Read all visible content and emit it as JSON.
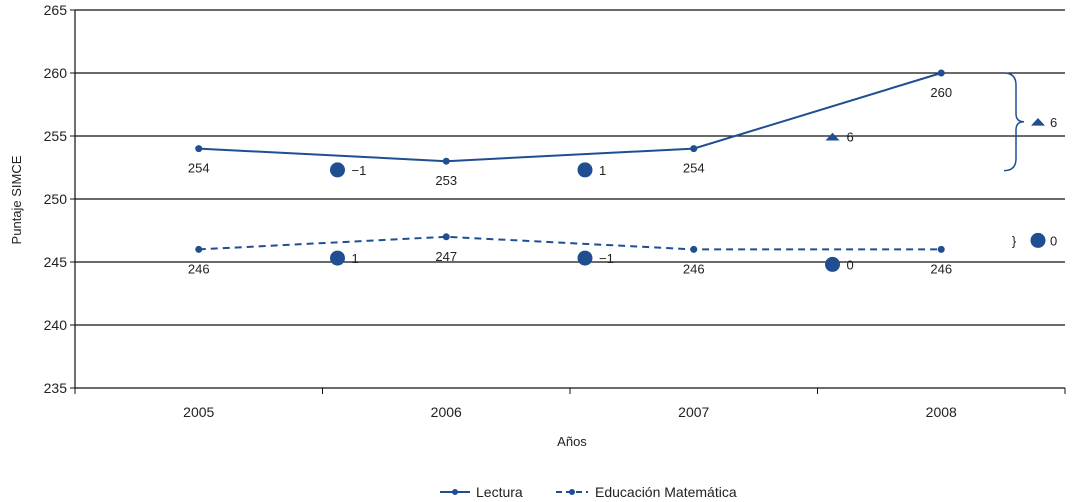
{
  "chart_data": {
    "type": "line",
    "xlabel": "Años",
    "ylabel": "Puntaje SIMCE",
    "ylim": [
      235,
      265
    ],
    "yticks": [
      235,
      240,
      245,
      250,
      255,
      260,
      265
    ],
    "categories": [
      "2005",
      "2006",
      "2007",
      "2008"
    ],
    "grid": true,
    "legend_position": "bottom",
    "series": [
      {
        "name": "Lectura",
        "style": "solid",
        "color": "#1f4e91",
        "values": [
          254,
          253,
          254,
          260
        ],
        "labels": [
          "254",
          "253",
          "254",
          "260"
        ]
      },
      {
        "name": "Educación Matemática",
        "style": "dashed",
        "color": "#1f4e91",
        "values": [
          246,
          247,
          246,
          246
        ],
        "labels": [
          "246",
          "247",
          "246",
          "246"
        ]
      }
    ],
    "change_markers": [
      {
        "series": "Lectura",
        "between": [
          "2005",
          "2006"
        ],
        "symbol": "circle",
        "label": "−1"
      },
      {
        "series": "Lectura",
        "between": [
          "2006",
          "2007"
        ],
        "symbol": "circle",
        "label": "1"
      },
      {
        "series": "Lectura",
        "between": [
          "2007",
          "2008"
        ],
        "symbol": "triangle",
        "label": "6"
      },
      {
        "series": "Educación Matemática",
        "between": [
          "2005",
          "2006"
        ],
        "symbol": "circle",
        "label": "1"
      },
      {
        "series": "Educación Matemática",
        "between": [
          "2006",
          "2007"
        ],
        "symbol": "circle",
        "label": "−1"
      },
      {
        "series": "Educación Matemática",
        "between": [
          "2007",
          "2008"
        ],
        "symbol": "circle",
        "label": "0"
      }
    ],
    "overall_markers": [
      {
        "series": "Lectura",
        "symbol": "triangle",
        "label": "6",
        "brace": "}"
      },
      {
        "series": "Educación Matemática",
        "symbol": "circle",
        "label": "0",
        "brace": "}"
      }
    ]
  }
}
